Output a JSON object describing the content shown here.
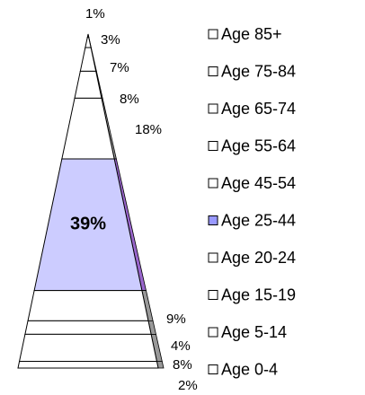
{
  "chart_data": {
    "type": "pyramid",
    "categories": [
      "Age 85+",
      "Age 75-84",
      "Age 65-74",
      "Age 55-64",
      "Age 45-54",
      "Age 25-44",
      "Age 20-24",
      "Age 15-19",
      "Age 5-14",
      "Age 0-4"
    ],
    "values": [
      1,
      3,
      7,
      8,
      18,
      39,
      9,
      4,
      8,
      2
    ],
    "value_labels": [
      "1%",
      "3%",
      "7%",
      "8%",
      "18%",
      "39%",
      "9%",
      "4%",
      "8%",
      "2%"
    ],
    "colors": [
      "#ffffff",
      "#ffffff",
      "#ffffff",
      "#ffffff",
      "#ffffff",
      "#ccccff",
      "#ffffff",
      "#ffffff",
      "#ffffff",
      "#ffffff"
    ],
    "side_colors": [
      "#999999",
      "#999999",
      "#999999",
      "#999999",
      "#999999",
      "#9966cc",
      "#999999",
      "#999999",
      "#999999",
      "#999999"
    ],
    "legend_colors": [
      "#ffffff",
      "#ffffff",
      "#ffffff",
      "#ffffff",
      "#ffffff",
      "#9999ff",
      "#ffffff",
      "#ffffff",
      "#ffffff",
      "#ffffff"
    ]
  }
}
